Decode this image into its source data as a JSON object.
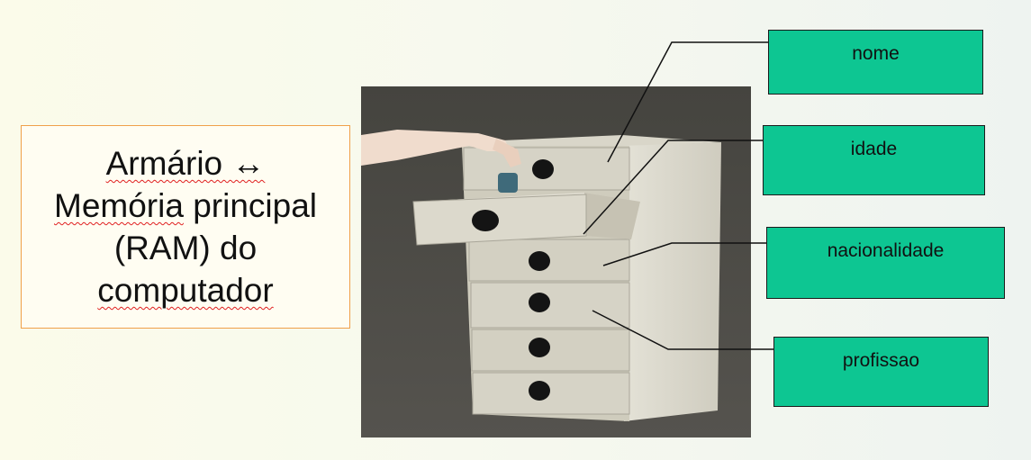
{
  "textbox": {
    "line1": "Armário ↔",
    "line2_word1": "Memória",
    "line2_word2": " principal",
    "line3": "(RAM) do",
    "line4": "computador"
  },
  "labels": {
    "nome": "nome",
    "idade": "idade",
    "nacionalidade": "nacionalidade",
    "profissao": "profissao"
  },
  "colors": {
    "label_fill": "#0dc692",
    "textbox_border": "#f0a04a",
    "photo_background": "#4b4a47",
    "cabinet": "#d8d5c8"
  }
}
